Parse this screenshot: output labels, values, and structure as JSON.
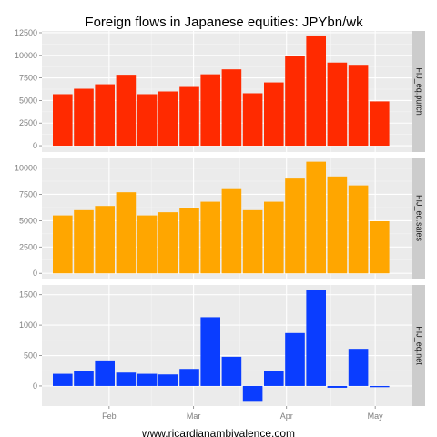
{
  "chart_data": {
    "type": "bar",
    "title": "Foreign flows in Japanese equities: JPYbn/wk",
    "caption": "www.ricardianambivalence.com",
    "x_tick_labels": [
      "Feb",
      "Mar",
      "Apr",
      "May"
    ],
    "x_tick_positions_week_index": [
      2.2,
      6.2,
      10.6,
      14.8
    ],
    "grid": true,
    "legend": "none",
    "panels": [
      {
        "strip": "FIJ_eq.purch",
        "color": "#ff2a00",
        "ylim": [
          -700,
          12700
        ],
        "yticks": [
          0,
          2500,
          5000,
          7500,
          10000,
          12500
        ],
        "values": [
          5700,
          6300,
          6800,
          7850,
          5700,
          6000,
          6500,
          7900,
          8450,
          5800,
          7000,
          9900,
          12200,
          9200,
          8950,
          4900
        ]
      },
      {
        "strip": "FIJ_eq.sales",
        "color": "#ffa600",
        "ylim": [
          -500,
          11000
        ],
        "yticks": [
          0,
          2500,
          5000,
          7500,
          10000
        ],
        "values": [
          5500,
          6000,
          6400,
          7700,
          5500,
          5800,
          6200,
          6800,
          8000,
          6000,
          6800,
          9000,
          10600,
          9200,
          8350,
          4950
        ]
      },
      {
        "strip": "FIJ_eq.net",
        "color": "#0a3dff",
        "ylim": [
          -330,
          1660
        ],
        "yticks": [
          0,
          500,
          1000,
          1500
        ],
        "values": [
          200,
          250,
          420,
          220,
          200,
          190,
          280,
          1130,
          480,
          -260,
          240,
          870,
          1580,
          -30,
          610,
          -20
        ]
      }
    ]
  }
}
